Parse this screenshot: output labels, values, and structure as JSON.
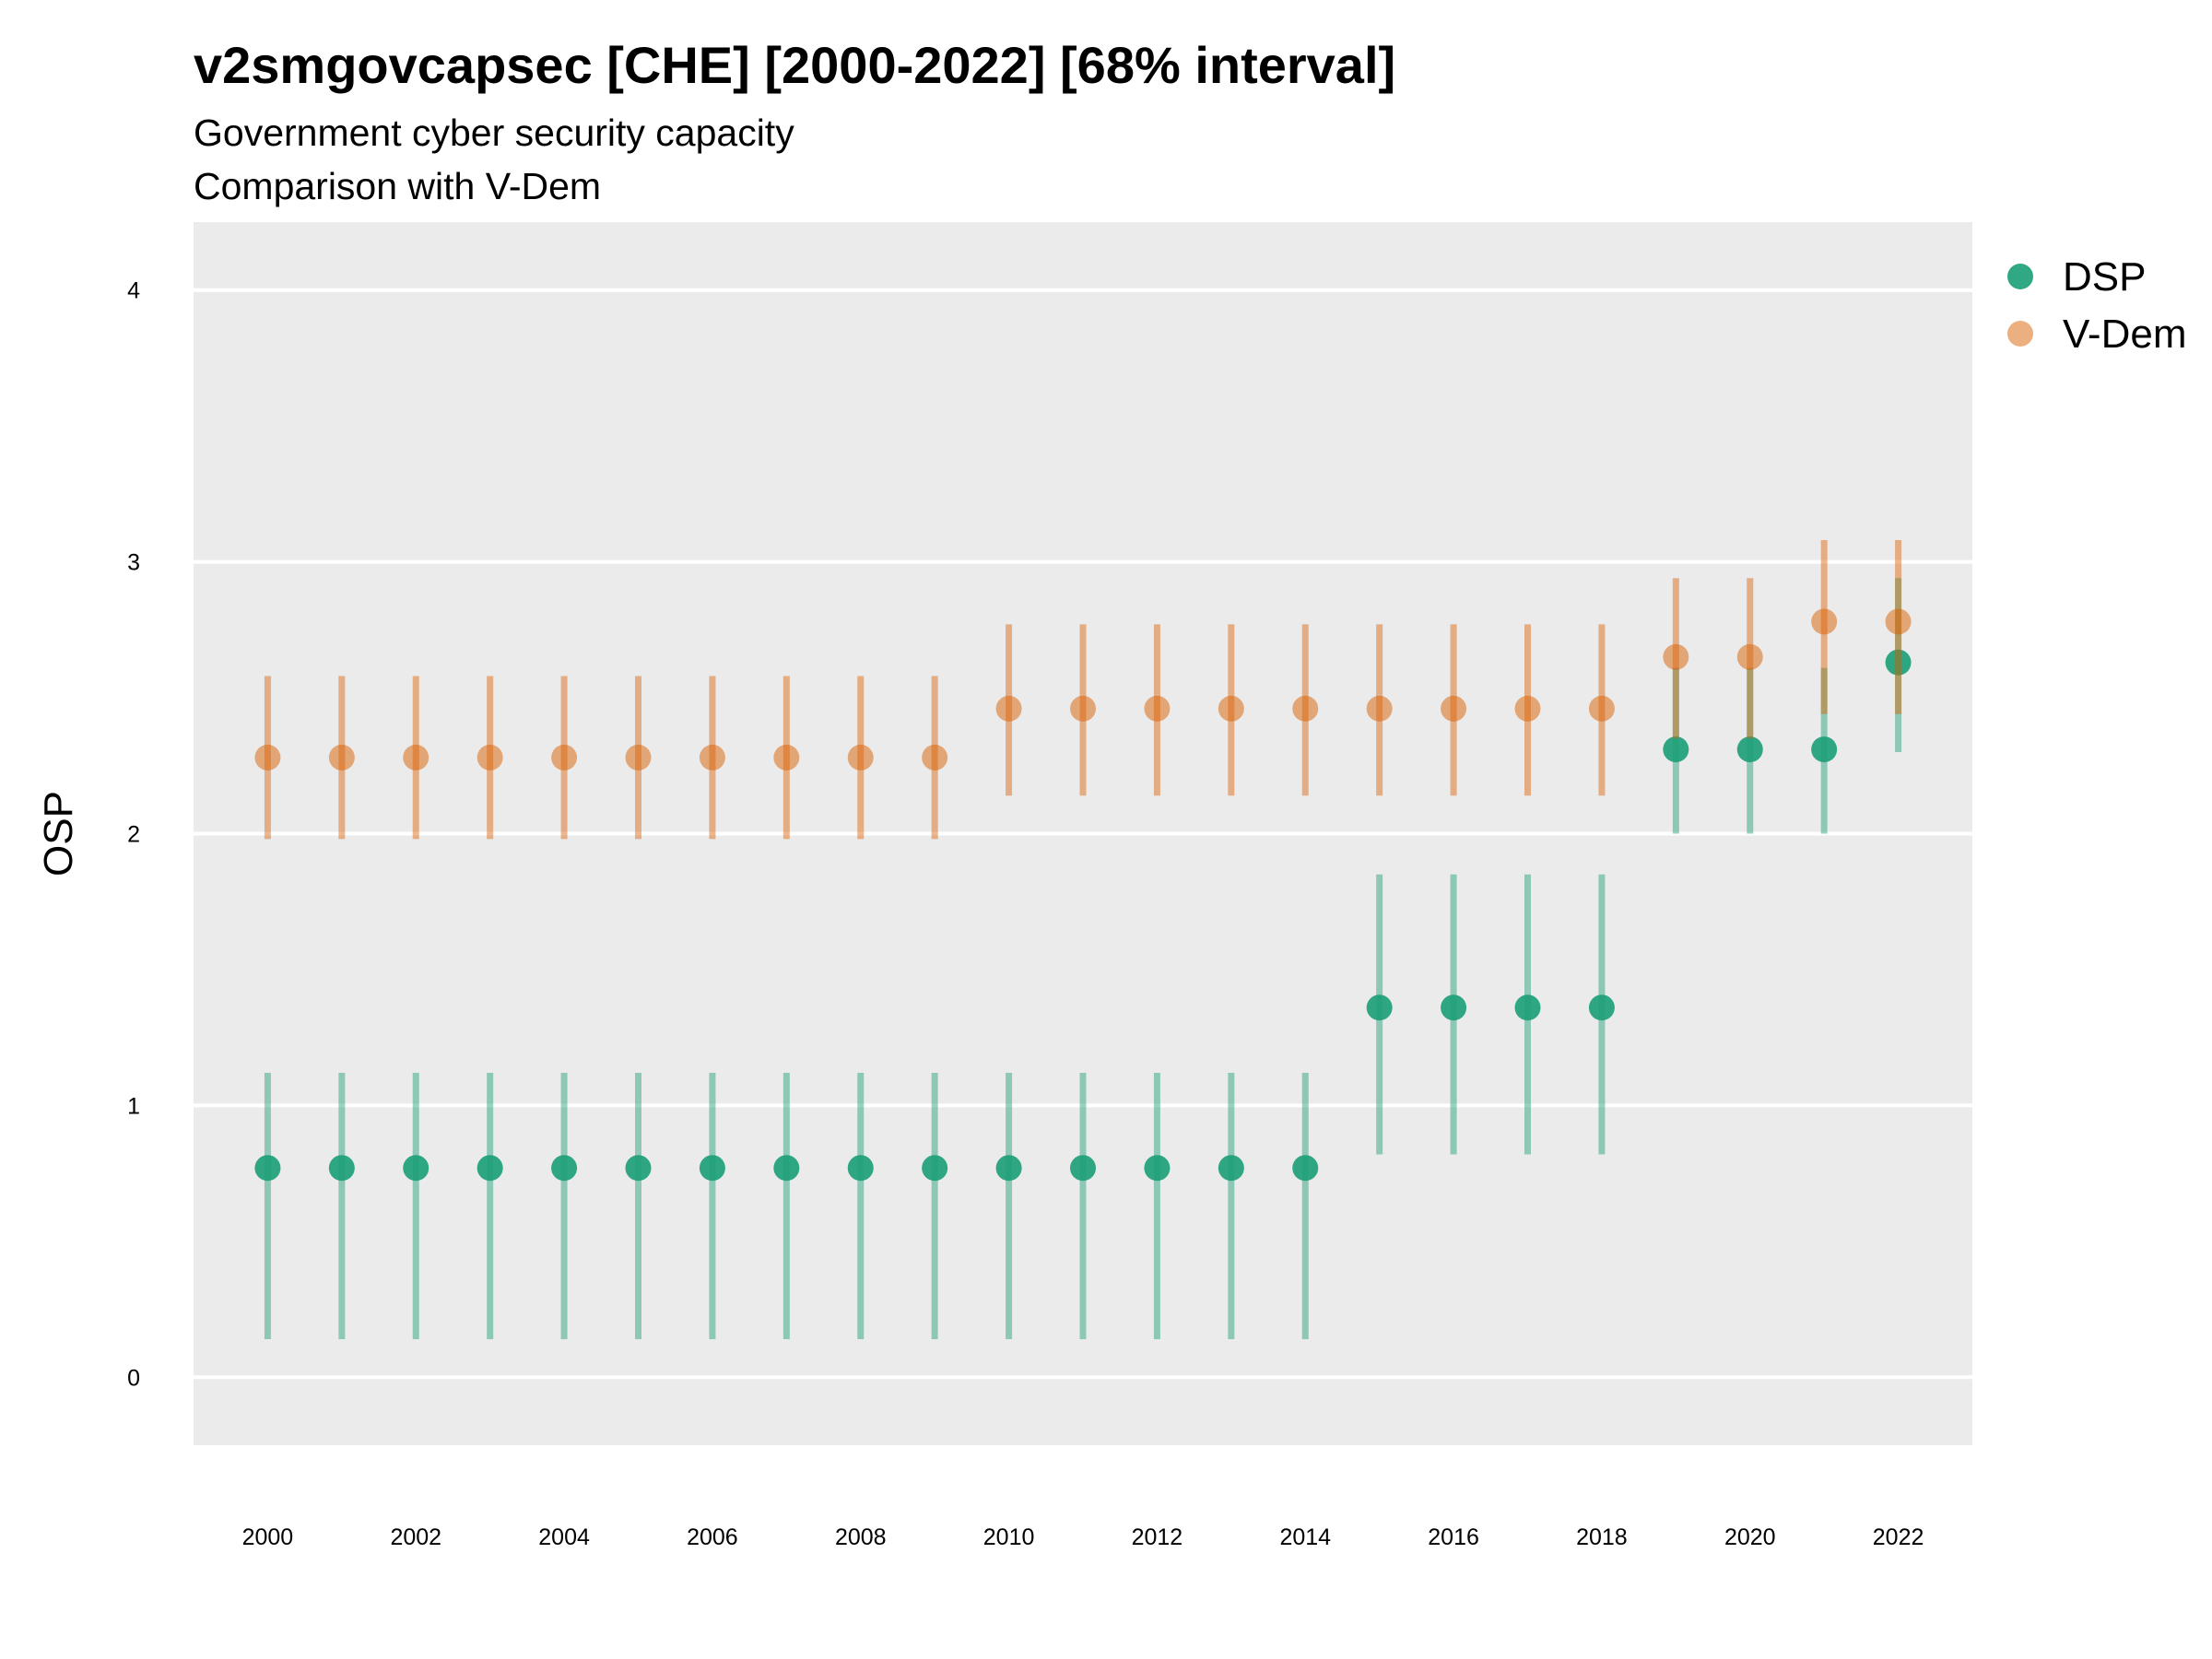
{
  "chart_data": {
    "type": "scatter",
    "title": "v2smgovcapsec [CHE] [2000-2022] [68% interval]",
    "subtitle_lines": [
      "Government cyber security capacity",
      "Comparison with V-Dem"
    ],
    "xlabel": "",
    "ylabel": "OSP",
    "xlim": [
      1999,
      2023
    ],
    "ylim": [
      -0.25,
      4.25
    ],
    "x_ticks": [
      2000,
      2002,
      2004,
      2006,
      2008,
      2010,
      2012,
      2014,
      2016,
      2018,
      2020,
      2022
    ],
    "y_ticks": [
      0,
      1,
      2,
      3,
      4
    ],
    "grid": "horizontal",
    "legend_position": "right",
    "x": [
      2000,
      2001,
      2002,
      2003,
      2004,
      2005,
      2006,
      2007,
      2008,
      2009,
      2010,
      2011,
      2012,
      2013,
      2014,
      2015,
      2016,
      2017,
      2018,
      2019,
      2020,
      2021,
      2022
    ],
    "series": [
      {
        "name": "DSP",
        "color": "#1b9e77",
        "values": [
          0.77,
          0.77,
          0.77,
          0.77,
          0.77,
          0.77,
          0.77,
          0.77,
          0.77,
          0.77,
          0.77,
          0.77,
          0.77,
          0.77,
          0.77,
          1.36,
          1.36,
          1.36,
          1.36,
          2.31,
          2.31,
          2.31,
          2.63
        ],
        "lower": [
          0.14,
          0.14,
          0.14,
          0.14,
          0.14,
          0.14,
          0.14,
          0.14,
          0.14,
          0.14,
          0.14,
          0.14,
          0.14,
          0.14,
          0.14,
          0.82,
          0.82,
          0.82,
          0.82,
          2.0,
          2.0,
          2.0,
          2.3
        ],
        "upper": [
          1.12,
          1.12,
          1.12,
          1.12,
          1.12,
          1.12,
          1.12,
          1.12,
          1.12,
          1.12,
          1.12,
          1.12,
          1.12,
          1.12,
          1.12,
          1.85,
          1.85,
          1.85,
          1.85,
          2.61,
          2.61,
          2.61,
          2.94
        ]
      },
      {
        "name": "V-Dem",
        "color": "#d95f02",
        "values": [
          2.28,
          2.28,
          2.28,
          2.28,
          2.28,
          2.28,
          2.28,
          2.28,
          2.28,
          2.28,
          2.46,
          2.46,
          2.46,
          2.46,
          2.46,
          2.46,
          2.46,
          2.46,
          2.46,
          2.65,
          2.65,
          2.78,
          2.78
        ],
        "lower": [
          1.98,
          1.98,
          1.98,
          1.98,
          1.98,
          1.98,
          1.98,
          1.98,
          1.98,
          1.98,
          2.14,
          2.14,
          2.14,
          2.14,
          2.14,
          2.14,
          2.14,
          2.14,
          2.14,
          2.35,
          2.35,
          2.44,
          2.44
        ],
        "upper": [
          2.58,
          2.58,
          2.58,
          2.58,
          2.58,
          2.58,
          2.58,
          2.58,
          2.58,
          2.58,
          2.77,
          2.77,
          2.77,
          2.77,
          2.77,
          2.77,
          2.77,
          2.77,
          2.77,
          2.94,
          2.94,
          3.08,
          3.08
        ]
      }
    ]
  }
}
